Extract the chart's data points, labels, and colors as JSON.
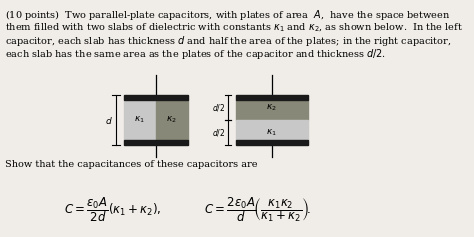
{
  "bg_color": "#f0ede8",
  "text_color": "#000000",
  "plate_color": "#1a1a1a",
  "k1_color": "#c8c8c8",
  "k2_color": "#888878",
  "fs_main": 7.0,
  "fs_label": 6.5,
  "fs_formula": 8.5,
  "line1": "(10 points)  Two parallel-plate capacitors, with plates of area  $A$,  have the space between",
  "line2": "them filled with two slabs of dielectric with constants $\\kappa_1$ and $\\kappa_2$, as shown below.  In the left",
  "line3": "capacitor, each slab has thickness $d$ and half the area of the plates; in the right capacitor,",
  "line4": "each slab has the same area as the plates of the capacitor and thickness $d/2$.",
  "line5": "Show that the capacitances of these capacitors are",
  "formula1": "$C = \\dfrac{\\varepsilon_0 A}{2d}(\\kappa_1 + \\kappa_2),$",
  "formula2": "$C = \\dfrac{2\\varepsilon_0 A}{d}\\!\\left(\\dfrac{\\kappa_1 \\kappa_2}{\\kappa_1 + \\kappa_2}\\right)\\!.$"
}
